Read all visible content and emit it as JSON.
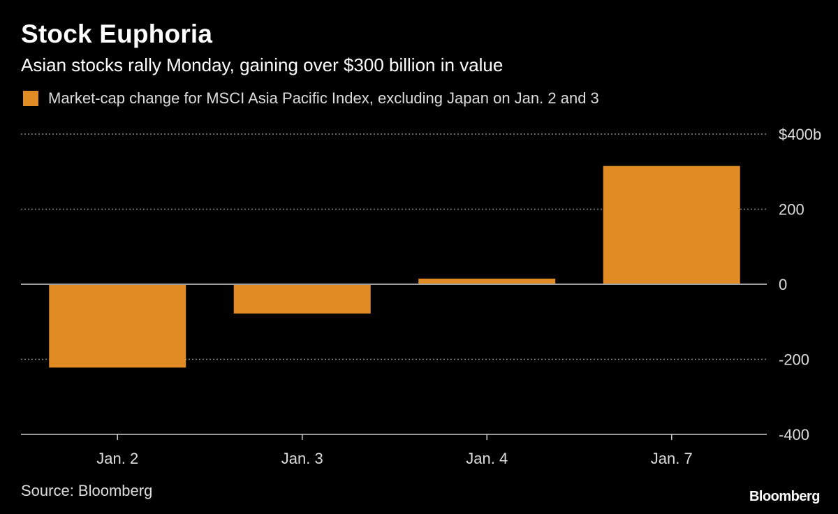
{
  "header": {
    "title": "Stock Euphoria",
    "subtitle": "Asian stocks rally Monday, gaining over $300 billion in value"
  },
  "footer": {
    "source": "Source: Bloomberg",
    "brand": "Bloomberg"
  },
  "colors": {
    "bar": "#e08b24",
    "grid": "#8a8a8a",
    "zero_line": "#a0a0a0",
    "axis": "#cccccc",
    "text": "#dddddd"
  },
  "chart_data": {
    "type": "bar",
    "title": "Stock Euphoria",
    "subtitle": "Asian stocks rally Monday, gaining over $300 billion in value",
    "categories": [
      "Jan. 2",
      "Jan. 3",
      "Jan. 4",
      "Jan. 7"
    ],
    "series": [
      {
        "name": "Market-cap change for MSCI Asia Pacific Index, excluding Japan on Jan. 2 and 3",
        "values": [
          -222,
          -78,
          15,
          315
        ]
      }
    ],
    "ylim": [
      -400,
      400
    ],
    "yticks": [
      400,
      200,
      0,
      -200,
      -400
    ],
    "ytick_labels": [
      "$400b",
      "200",
      "0",
      "-200",
      "-400"
    ],
    "xlabel": "",
    "ylabel": "",
    "grid": true,
    "legend_position": "top-left"
  }
}
